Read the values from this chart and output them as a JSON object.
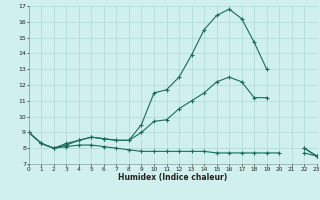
{
  "xlabel": "Humidex (Indice chaleur)",
  "bg_color": "#cff0ec",
  "grid_color": "#aed8d4",
  "line_color": "#1a6b5a",
  "x": [
    0,
    1,
    2,
    3,
    4,
    5,
    6,
    7,
    8,
    9,
    10,
    11,
    12,
    13,
    14,
    15,
    16,
    17,
    18,
    19,
    20,
    21,
    22,
    23
  ],
  "line1": [
    9.0,
    8.3,
    8.0,
    8.2,
    8.5,
    8.7,
    8.6,
    8.5,
    8.5,
    9.5,
    11.5,
    11.7,
    12.5,
    13.9,
    15.5,
    16.4,
    16.8,
    16.2,
    14.7,
    13.0,
    null,
    null,
    8.0,
    7.5
  ],
  "line2": [
    9.0,
    8.3,
    8.0,
    8.3,
    8.5,
    8.7,
    8.6,
    8.5,
    8.5,
    9.0,
    9.7,
    9.8,
    10.5,
    11.0,
    11.5,
    12.2,
    12.5,
    12.2,
    11.2,
    11.2,
    null,
    null,
    8.0,
    7.5
  ],
  "line3": [
    9.0,
    8.3,
    8.0,
    8.1,
    8.2,
    8.2,
    8.1,
    8.0,
    7.9,
    7.8,
    7.8,
    7.8,
    7.8,
    7.8,
    7.8,
    7.7,
    7.7,
    7.7,
    7.7,
    7.7,
    7.7,
    null,
    7.7,
    7.5
  ],
  "ylim": [
    7,
    17
  ],
  "xlim": [
    0,
    23
  ],
  "yticks": [
    7,
    8,
    9,
    10,
    11,
    12,
    13,
    14,
    15,
    16,
    17
  ],
  "xticks": [
    0,
    1,
    2,
    3,
    4,
    5,
    6,
    7,
    8,
    9,
    10,
    11,
    12,
    13,
    14,
    15,
    16,
    17,
    18,
    19,
    20,
    21,
    22,
    23
  ]
}
